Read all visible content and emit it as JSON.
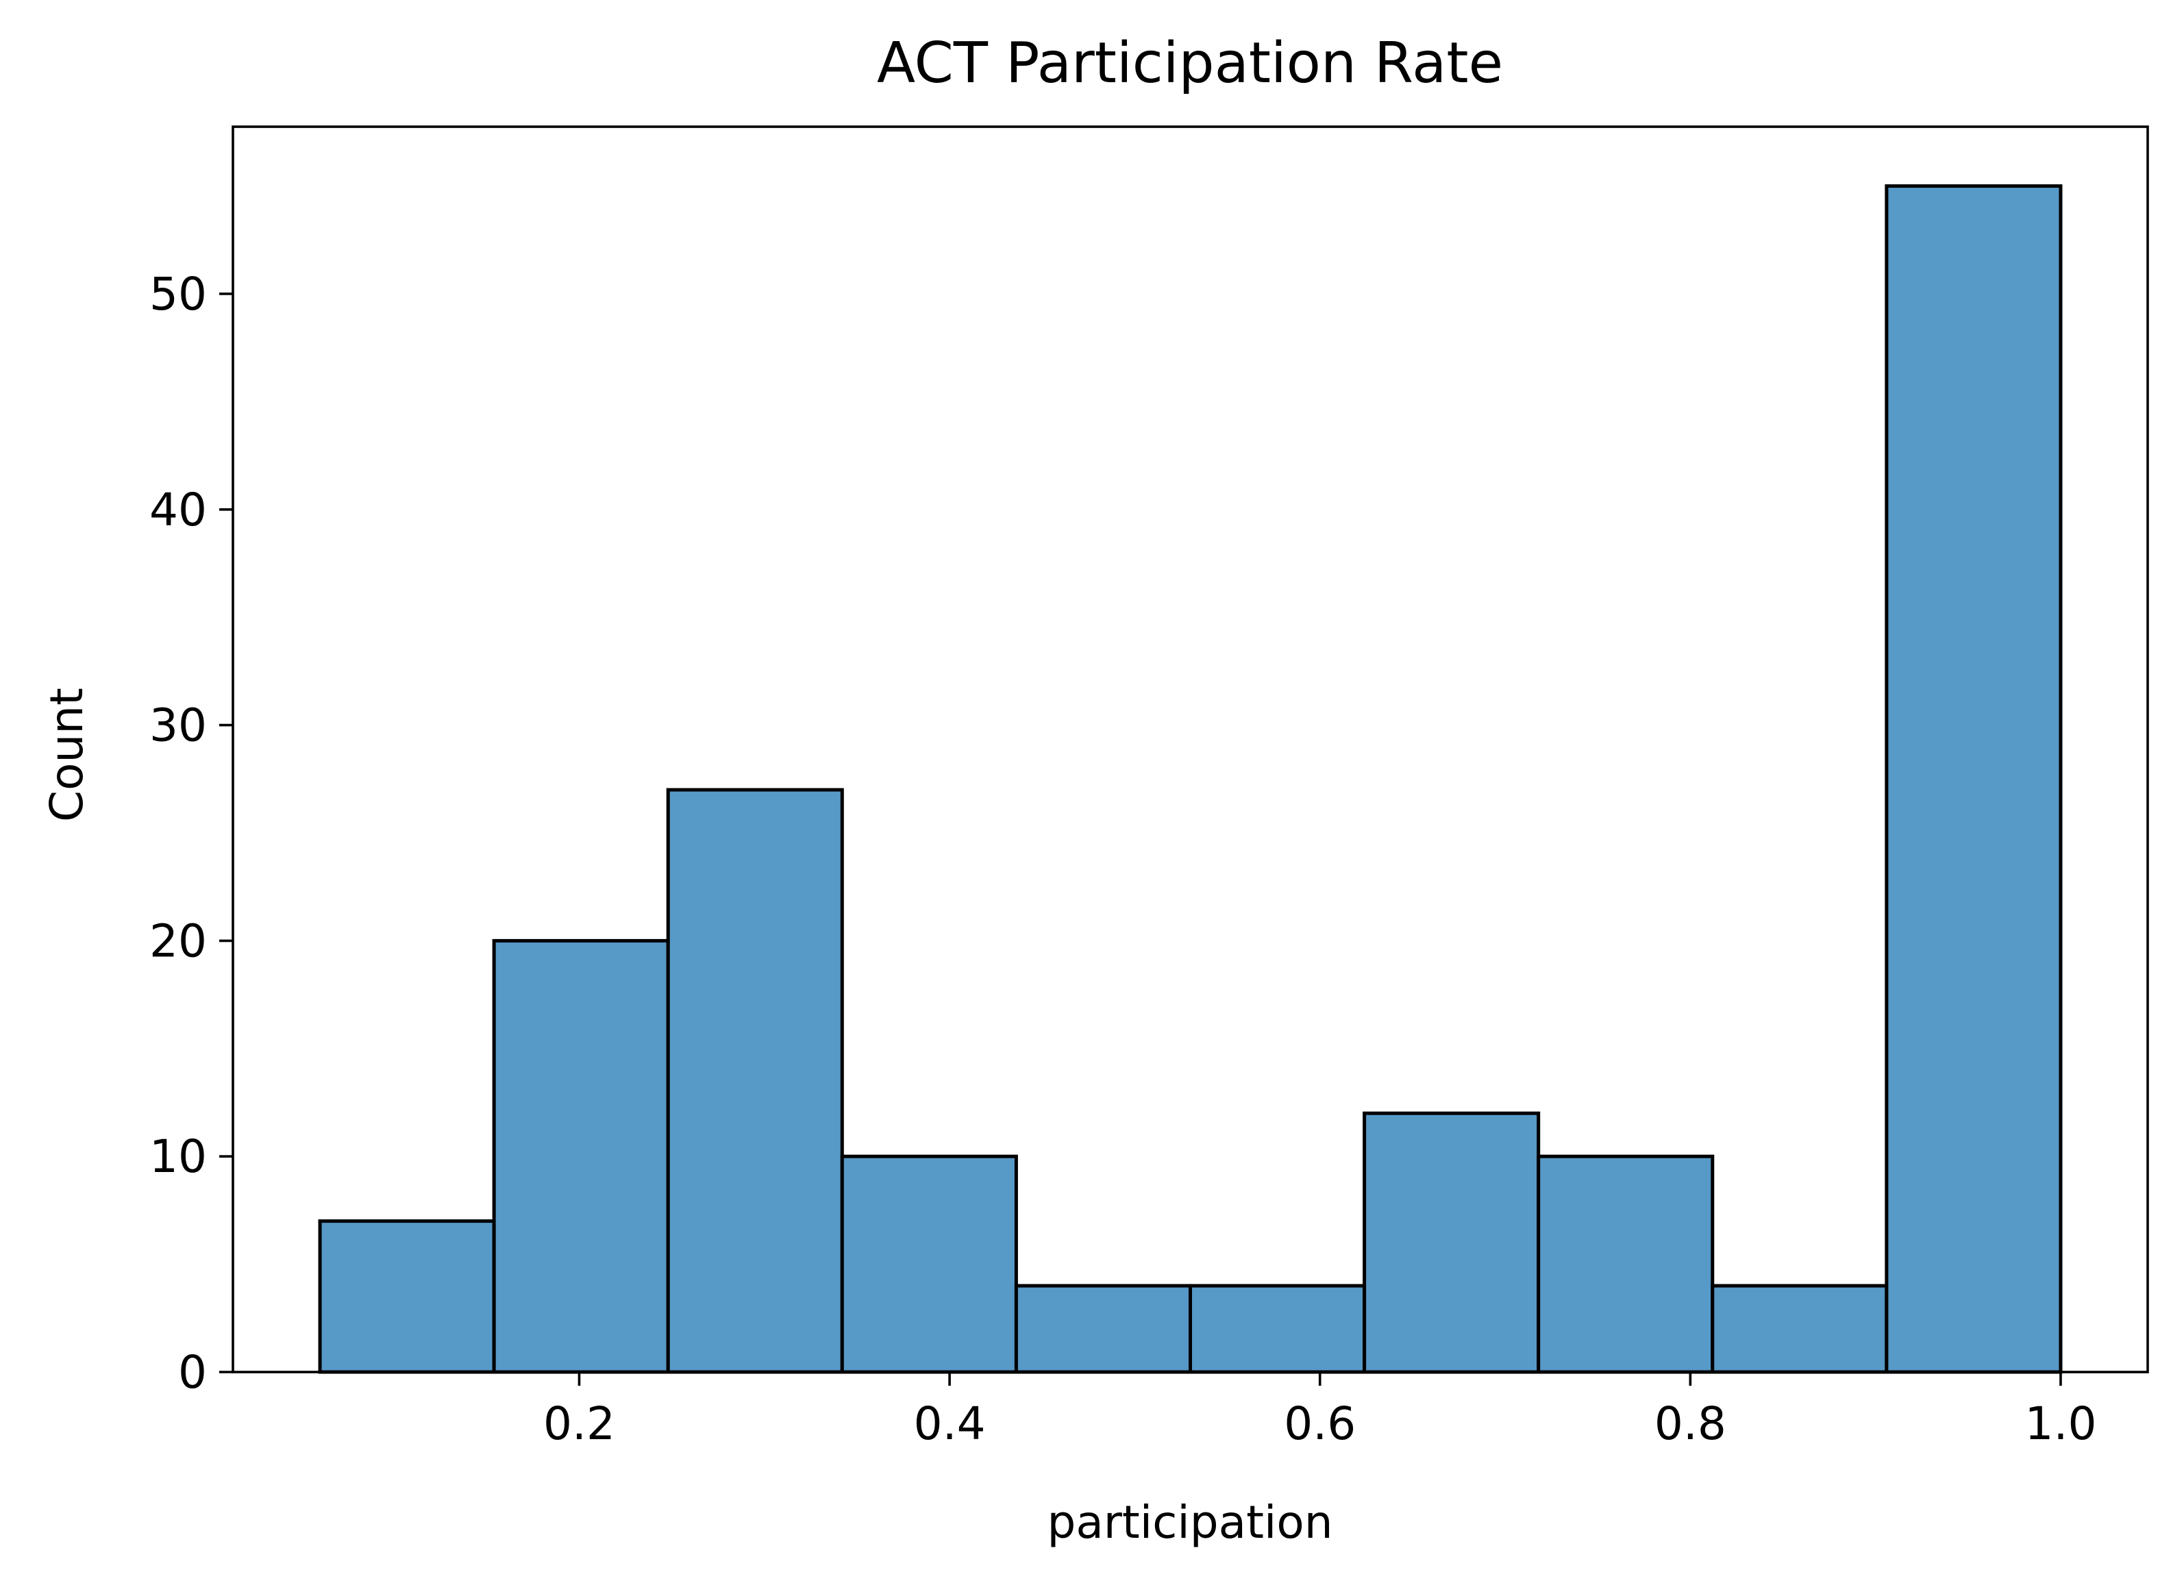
{
  "colors": {
    "bar_fill": "#5799c7",
    "bar_edge": "#000000",
    "axes": "#000000",
    "background": "#ffffff"
  },
  "chart_data": {
    "type": "bar",
    "subtype": "histogram",
    "title": "ACT Participation Rate",
    "xlabel": "participation",
    "ylabel": "Count",
    "bins": [
      {
        "start": 0.06,
        "end": 0.154,
        "count": 7
      },
      {
        "start": 0.154,
        "end": 0.248,
        "count": 20
      },
      {
        "start": 0.248,
        "end": 0.342,
        "count": 27
      },
      {
        "start": 0.342,
        "end": 0.436,
        "count": 10
      },
      {
        "start": 0.436,
        "end": 0.53,
        "count": 4
      },
      {
        "start": 0.53,
        "end": 0.624,
        "count": 4
      },
      {
        "start": 0.624,
        "end": 0.718,
        "count": 12
      },
      {
        "start": 0.718,
        "end": 0.812,
        "count": 10
      },
      {
        "start": 0.812,
        "end": 0.906,
        "count": 4
      },
      {
        "start": 0.906,
        "end": 1.0,
        "count": 55
      }
    ],
    "xlim": [
      0.013,
      1.047
    ],
    "ylim": [
      0,
      57.75
    ],
    "xticks": [
      0.2,
      0.4,
      0.6,
      0.8,
      1.0
    ],
    "xtick_labels": [
      "0.2",
      "0.4",
      "0.6",
      "0.8",
      "1.0"
    ],
    "yticks": [
      0,
      10,
      20,
      30,
      40,
      50
    ],
    "ytick_labels": [
      "0",
      "10",
      "20",
      "30",
      "40",
      "50"
    ],
    "grid": false,
    "legend": "none"
  }
}
